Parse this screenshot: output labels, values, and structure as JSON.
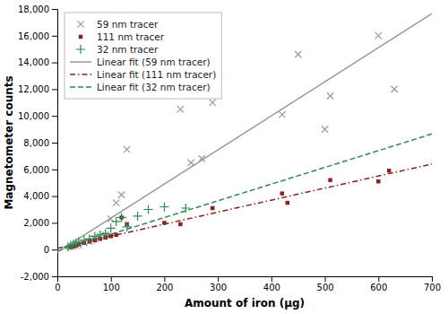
{
  "chart_data": {
    "type": "scatter",
    "xlabel": "Amount of iron (μg)",
    "ylabel": "Magnetometer counts",
    "xlim": [
      0,
      700
    ],
    "ylim": [
      -2000,
      18000
    ],
    "xticks": [
      0,
      100,
      200,
      300,
      400,
      500,
      600,
      700
    ],
    "yticks": [
      {
        "value": -2000,
        "label": "-2,000"
      },
      0,
      {
        "value": 2000,
        "label": "2,000"
      },
      {
        "value": 4000,
        "label": "4,000"
      },
      {
        "value": 6000,
        "label": "6,000"
      },
      {
        "value": 8000,
        "label": "8,000"
      },
      {
        "value": 10000,
        "label": "10,000"
      },
      {
        "value": 12000,
        "label": "12,000"
      },
      {
        "value": 14000,
        "label": "14,000"
      },
      {
        "value": 16000,
        "label": "16,000"
      },
      {
        "value": 18000,
        "label": "18,000"
      }
    ],
    "legend": "upper left",
    "series": [
      {
        "name": "59 nm tracer",
        "type": "scatter",
        "marker": "x",
        "color": "#999999",
        "x": [
          25,
          30,
          35,
          40,
          50,
          60,
          65,
          70,
          80,
          90,
          100,
          110,
          120,
          130,
          230,
          250,
          270,
          290,
          420,
          450,
          500,
          510,
          600,
          630
        ],
        "values": [
          200,
          250,
          300,
          350,
          500,
          600,
          700,
          800,
          1000,
          1100,
          2300,
          3500,
          4100,
          7500,
          10500,
          6500,
          6800,
          11000,
          10100,
          14600,
          9000,
          11500,
          16000,
          12000
        ]
      },
      {
        "name": "111 nm tracer",
        "type": "scatter",
        "marker": "square",
        "color": "#8B2020",
        "x": [
          25,
          30,
          35,
          40,
          50,
          60,
          70,
          80,
          90,
          100,
          110,
          120,
          130,
          200,
          230,
          290,
          420,
          430,
          510,
          600,
          620
        ],
        "values": [
          200,
          250,
          300,
          400,
          500,
          600,
          700,
          800,
          900,
          1000,
          1100,
          2400,
          1900,
          2000,
          1900,
          3100,
          4200,
          3500,
          5200,
          5100,
          5900
        ]
      },
      {
        "name": "32 nm tracer",
        "type": "scatter",
        "marker": "plus",
        "color": "#2E8B57",
        "x": [
          20,
          25,
          30,
          35,
          40,
          50,
          60,
          70,
          80,
          90,
          100,
          110,
          120,
          130,
          150,
          170,
          200,
          240
        ],
        "values": [
          200,
          300,
          400,
          500,
          600,
          700,
          800,
          1000,
          1100,
          1200,
          1600,
          2100,
          2400,
          1700,
          2500,
          3000,
          3200,
          3100
        ]
      },
      {
        "name": "Linear fit (59 nm tracer)",
        "type": "line",
        "line_style": "solid",
        "color": "#999999",
        "x": [
          0,
          700
        ],
        "values": [
          -200,
          17650
        ]
      },
      {
        "name": "Linear fit (111 nm tracer)",
        "type": "line",
        "line_style": "dashdot",
        "color": "#8B2020",
        "x": [
          0,
          700
        ],
        "values": [
          100,
          6400
        ]
      },
      {
        "name": "Linear fit (32 nm tracer)",
        "type": "line",
        "line_style": "dashed",
        "color": "#2E8B57",
        "x": [
          0,
          700
        ],
        "values": [
          -100,
          8650
        ]
      }
    ]
  }
}
